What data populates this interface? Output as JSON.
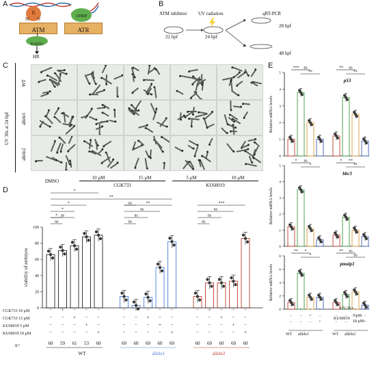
{
  "panelA": {
    "label": "A",
    "atm": {
      "label": "ATM",
      "r": "R",
      "m": "M",
      "n": "N",
      "rad51": "RAD51",
      "hr": "HR"
    },
    "atr": {
      "label": "ATR",
      "atrip": "ATRIP"
    }
  },
  "panelB": {
    "label": "B",
    "steps": [
      "ATM inhibitor",
      "UV radiation",
      "qRT-PCR"
    ],
    "times": [
      "22 hpf",
      "24 hpf",
      "28 hpf",
      "48 hpf"
    ]
  },
  "panelC": {
    "label": "C",
    "side_label": "UV 30s at 24 hpf",
    "rows": [
      "WT",
      "allele1",
      "allele2"
    ],
    "col_doses": [
      "DMSO",
      "10 μM",
      "15 μM",
      "5 μM",
      "10 μM"
    ],
    "groups": [
      "CGK733",
      "KU60019"
    ]
  },
  "panelD": {
    "label": "D",
    "row_labels": [
      "CGK733  10 μM",
      "CGK733  15 μM",
      "KU60019  5 μM",
      "KU60019  10 μM"
    ],
    "n_label": "n=",
    "n_values": [
      "60",
      "59",
      "61",
      "53",
      "60",
      "60",
      "60",
      "60",
      "60",
      "60",
      "60",
      "60",
      "60",
      "60",
      "60"
    ],
    "genotypes": [
      "WT",
      "allele1",
      "allele2"
    ],
    "sig_labels": [
      "*",
      "**",
      "*",
      "**",
      "*",
      "***",
      "*",
      "ns",
      "ns",
      "ns",
      "ns",
      "ns",
      "ns",
      "ns",
      "ns",
      "ns"
    ]
  },
  "panelE": {
    "label": "E",
    "genes": [
      "p53",
      "bbc3",
      "pmaip1"
    ],
    "ylabel": "Relative mRNA levels",
    "uv_label": "UV 30 s",
    "ku_label": "KU60019",
    "ku_doses": [
      "5 μM",
      "10 μM"
    ],
    "genotypes": [
      "WT",
      "allele1",
      "WT",
      "allele2"
    ],
    "sig_labels": [
      "***",
      "ns",
      "**",
      "**",
      "ns",
      "**",
      "*",
      "ns",
      "*",
      "*",
      "**",
      "**",
      "**",
      "*",
      "*",
      "**",
      "ns",
      "ns",
      "*",
      "*",
      "**",
      "**",
      "**"
    ]
  },
  "chart_data": [
    {
      "type": "bar",
      "panel": "D",
      "ylabel": "viability of embryos",
      "ylim": [
        0,
        100
      ],
      "yticks": [
        0,
        20,
        40,
        60,
        80,
        100
      ],
      "groups": [
        "WT",
        "allele1",
        "allele2"
      ],
      "conditions": [
        "DMSO",
        "CGK733 10 μM",
        "CGK733 15 μM",
        "KU60019 5 μM",
        "KU60019 10 μM"
      ],
      "series": [
        {
          "name": "WT",
          "color": "#222222",
          "values": [
            66,
            71,
            77,
            88,
            90
          ]
        },
        {
          "name": "allele1",
          "color": "#4a7fd6",
          "values": [
            14,
            3,
            13,
            50,
            82
          ]
        },
        {
          "name": "allele2",
          "color": "#c0392b",
          "values": [
            14,
            31,
            31,
            33,
            86
          ]
        }
      ]
    },
    {
      "type": "bar",
      "panel": "E-p53",
      "ylabel": "Relative mRNA levels",
      "ylim": [
        0,
        5
      ],
      "yticks": [
        0,
        1,
        2,
        3,
        4,
        5
      ],
      "groups": [
        "WT",
        "allele1",
        "allele2"
      ],
      "values": [
        1.0,
        3.8,
        2.0,
        1.0,
        1.2,
        3.5,
        2.5,
        0.9
      ]
    },
    {
      "type": "bar",
      "panel": "E-bbc3",
      "ylabel": "Relative mRNA levels",
      "ylim": [
        0,
        5
      ],
      "yticks": [
        0,
        1,
        2,
        3,
        4,
        5
      ],
      "values": [
        1.2,
        3.5,
        1.1,
        0.4,
        0.7,
        1.8,
        1.0,
        0.6
      ]
    },
    {
      "type": "bar",
      "panel": "E-pmaip1",
      "ylabel": "Relative mRNA levels",
      "ylim": [
        0,
        8
      ],
      "yticks": [
        0,
        2,
        4,
        6,
        8
      ],
      "values": [
        1.0,
        5.4,
        1.8,
        1.8,
        1.0,
        2.2,
        2.6,
        0.6
      ]
    }
  ],
  "colors": {
    "wt": "#222222",
    "allele1": "#4a7fd6",
    "allele2": "#c0392b",
    "green": "#3a9a3a",
    "orange": "#d99a3a",
    "blue": "#3a5fb0",
    "red": "#c0392b"
  }
}
